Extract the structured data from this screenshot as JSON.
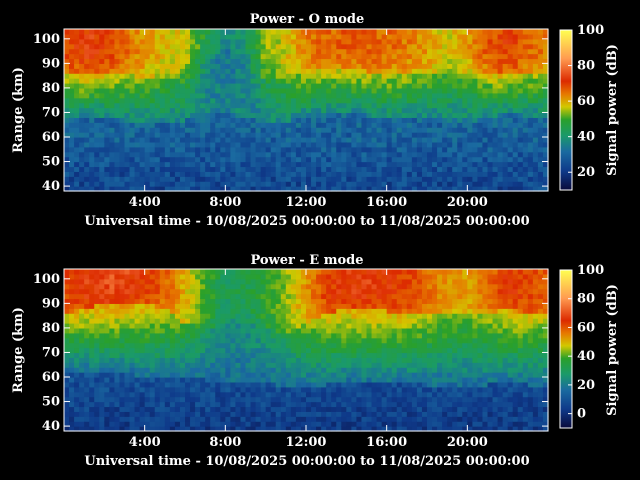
{
  "chart_data": [
    {
      "type": "heatmap",
      "title": "Power - O mode",
      "xlabel": "Universal time - 10/08/2025 00:00:00 to 11/08/2025 00:00:00",
      "ylabel": "Range (km)",
      "colorbar_label": "Signal power (dB)",
      "xlim": [
        0,
        24
      ],
      "ylim": [
        38,
        104
      ],
      "x_ticks": [
        4,
        8,
        12,
        16,
        20
      ],
      "x_tick_labels": [
        "4:00",
        "8:00",
        "12:00",
        "16:00",
        "20:00"
      ],
      "y_ticks": [
        40,
        50,
        60,
        70,
        80,
        90,
        100
      ],
      "y_tick_labels": [
        "40",
        "50",
        "60",
        "70",
        "80",
        "90",
        "100"
      ],
      "colorbar_range": [
        10,
        100
      ],
      "colorbar_ticks": [
        20,
        40,
        60,
        80,
        100
      ],
      "colorbar_tick_labels": [
        "20",
        "40",
        "60",
        "80",
        "100"
      ],
      "colormap": [
        "#0a0a3c",
        "#0f3a8a",
        "#1a6aa0",
        "#1a9a6a",
        "#2aa02a",
        "#d2c800",
        "#e67800",
        "#dc2a00",
        "#ff9a50",
        "#ffff50"
      ],
      "profile": {
        "hours": [
          0,
          1,
          2,
          3,
          4,
          5,
          6,
          7,
          8,
          9,
          10,
          11,
          12,
          13,
          14,
          15,
          16,
          17,
          18,
          19,
          20,
          21,
          22,
          23,
          24
        ],
        "top_power_db": [
          75,
          80,
          78,
          72,
          66,
          62,
          60,
          45,
          35,
          40,
          55,
          60,
          70,
          72,
          74,
          73,
          72,
          70,
          66,
          60,
          65,
          74,
          78,
          72,
          70
        ],
        "layer_km": [
          86,
          87,
          87,
          86,
          84,
          84,
          86,
          90,
          92,
          88,
          84,
          84,
          86,
          88,
          88,
          87,
          86,
          86,
          86,
          86,
          86,
          86,
          86,
          86,
          86
        ],
        "floor_km": [
          68,
          68,
          68,
          67,
          66,
          66,
          67,
          68,
          70,
          68,
          66,
          66,
          68,
          69,
          70,
          69,
          68,
          68,
          68,
          67,
          66,
          68,
          70,
          68,
          68
        ]
      }
    },
    {
      "type": "heatmap",
      "title": "Power - E mode",
      "xlabel": "Universal time - 10/08/2025 00:00:00 to 11/08/2025 00:00:00",
      "ylabel": "Range (km)",
      "colorbar_label": "Signal power (dB)",
      "xlim": [
        0,
        24
      ],
      "ylim": [
        38,
        104
      ],
      "x_ticks": [
        4,
        8,
        12,
        16,
        20
      ],
      "x_tick_labels": [
        "4:00",
        "8:00",
        "12:00",
        "16:00",
        "20:00"
      ],
      "y_ticks": [
        40,
        50,
        60,
        70,
        80,
        90,
        100
      ],
      "y_tick_labels": [
        "40",
        "50",
        "60",
        "70",
        "80",
        "90",
        "100"
      ],
      "colorbar_range": [
        -10,
        100
      ],
      "colorbar_ticks": [
        0,
        20,
        40,
        60,
        80,
        100
      ],
      "colorbar_tick_labels": [
        "0",
        "20",
        "40",
        "60",
        "80",
        "100"
      ],
      "colormap": [
        "#0a0a3c",
        "#0f3a8a",
        "#1a6aa0",
        "#1a9a6a",
        "#2aa02a",
        "#d2c800",
        "#e67800",
        "#dc2a00",
        "#ff9a50",
        "#ffff50"
      ],
      "profile": {
        "hours": [
          0,
          1,
          2,
          3,
          4,
          5,
          6,
          7,
          8,
          9,
          10,
          11,
          12,
          13,
          14,
          15,
          16,
          17,
          18,
          19,
          20,
          21,
          22,
          23,
          24
        ],
        "top_power_db": [
          72,
          76,
          80,
          78,
          74,
          68,
          55,
          40,
          30,
          32,
          38,
          45,
          60,
          72,
          76,
          76,
          75,
          72,
          66,
          60,
          58,
          65,
          74,
          72,
          68
        ],
        "layer_km": [
          86,
          88,
          90,
          90,
          90,
          88,
          82,
          80,
          82,
          82,
          80,
          78,
          82,
          86,
          88,
          88,
          87,
          86,
          86,
          86,
          85,
          86,
          88,
          86,
          86
        ],
        "floor_km": [
          62,
          62,
          62,
          62,
          60,
          60,
          60,
          59,
          58,
          58,
          58,
          56,
          56,
          57,
          58,
          58,
          58,
          58,
          57,
          57,
          57,
          57,
          58,
          57,
          57
        ]
      }
    }
  ]
}
